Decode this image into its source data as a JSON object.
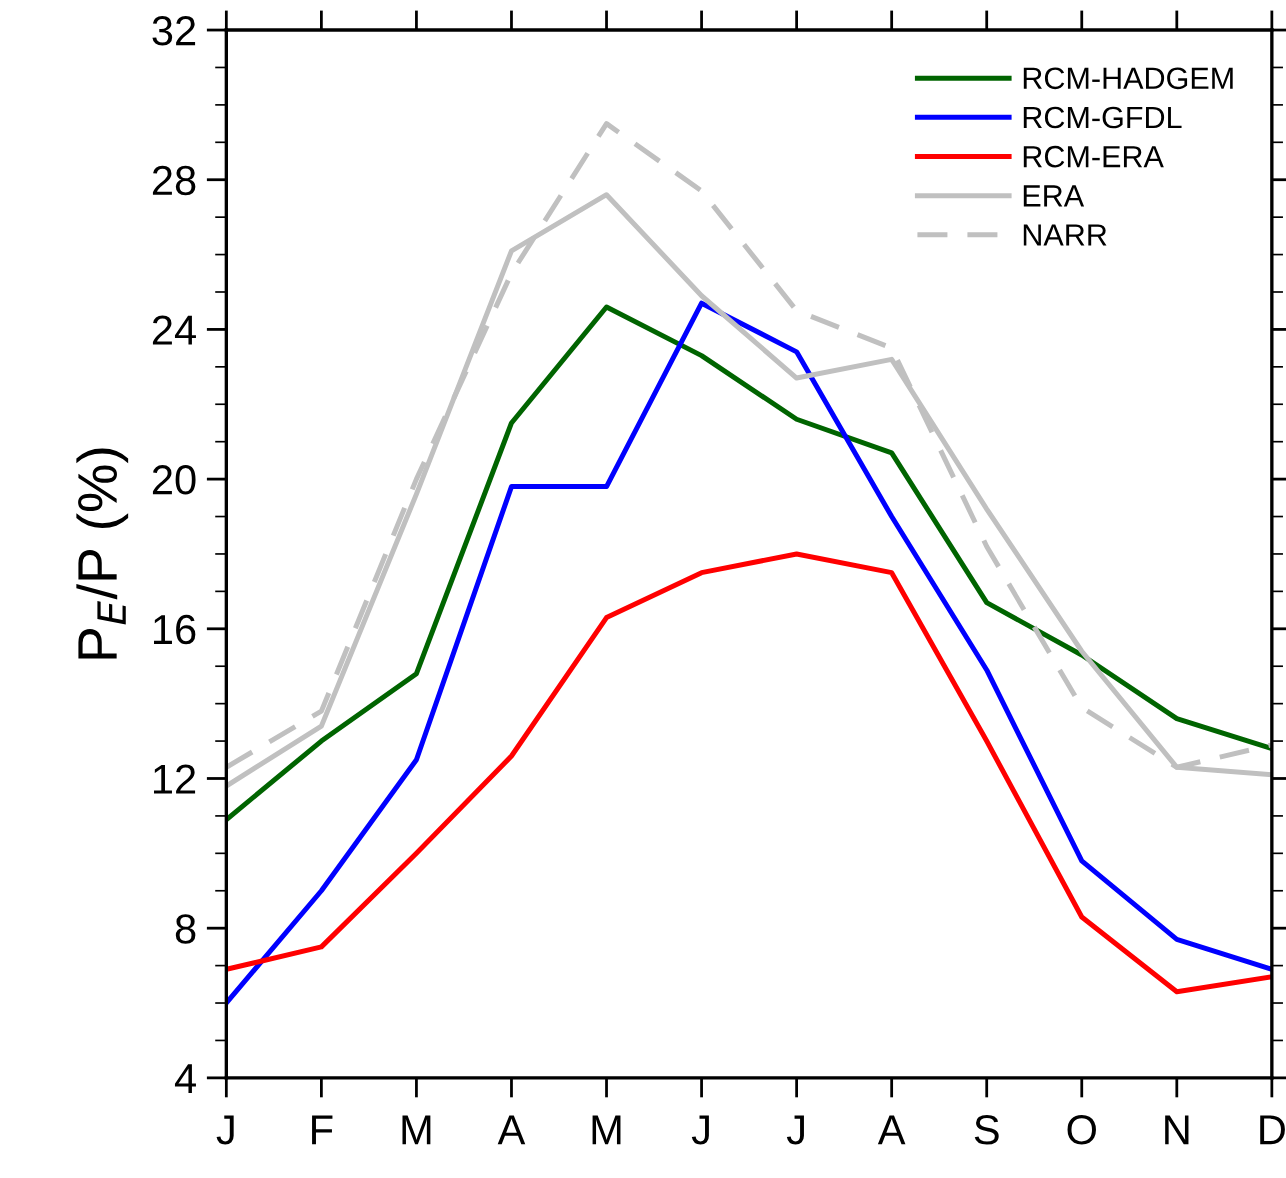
{
  "chart_data": {
    "type": "line",
    "ylabel": "P$_{E}$/P (%)",
    "categories": [
      "J",
      "F",
      "M",
      "A",
      "M",
      "J",
      "J",
      "A",
      "S",
      "O",
      "N",
      "D"
    ],
    "series": [
      {
        "name": "RCM-HADGEM",
        "color": "#006400",
        "line_style": "solid",
        "values": [
          10.9,
          13.0,
          14.8,
          21.5,
          24.6,
          23.3,
          21.6,
          20.7,
          16.7,
          15.3,
          13.6,
          12.8
        ]
      },
      {
        "name": "RCM-GFDL",
        "color": "#0000ff",
        "line_style": "solid",
        "values": [
          6.0,
          9.0,
          12.5,
          19.8,
          19.8,
          24.7,
          23.4,
          19.0,
          14.9,
          9.8,
          7.7,
          6.9
        ]
      },
      {
        "name": "RCM-ERA",
        "color": "#ff0000",
        "line_style": "solid",
        "values": [
          6.9,
          7.5,
          10.0,
          12.6,
          16.3,
          17.5,
          18.0,
          17.5,
          13.0,
          8.3,
          6.3,
          6.7
        ]
      },
      {
        "name": "ERA",
        "color": "#c0c0c0",
        "line_style": "solid",
        "values": [
          11.8,
          13.4,
          19.6,
          26.1,
          27.6,
          24.9,
          22.7,
          23.2,
          19.2,
          15.4,
          12.3,
          12.1
        ]
      },
      {
        "name": "NARR",
        "color": "#c0c0c0",
        "line_style": "dashed",
        "values": [
          12.3,
          13.8,
          20.0,
          25.5,
          29.5,
          27.7,
          24.5,
          23.5,
          18.2,
          13.9,
          12.3,
          12.9
        ]
      }
    ],
    "ylim": [
      4,
      32
    ],
    "yticks": [
      4,
      8,
      12,
      16,
      20,
      24,
      28,
      32
    ],
    "grid": false,
    "legend": "top right",
    "marker": "none"
  }
}
